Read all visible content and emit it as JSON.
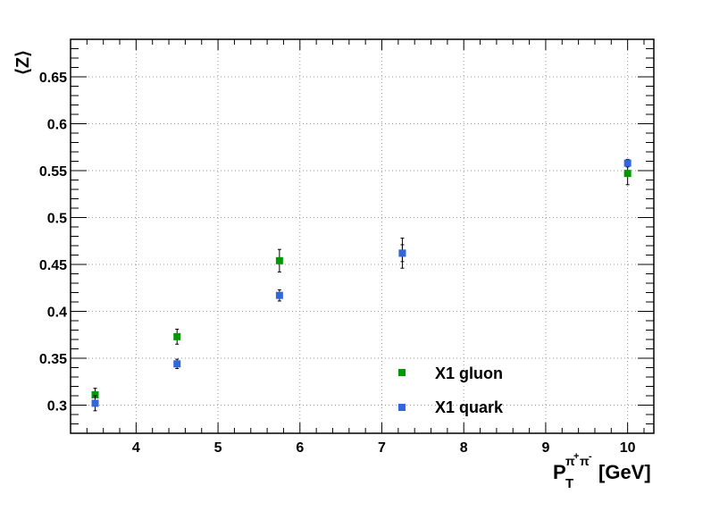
{
  "chart_data": {
    "type": "scatter",
    "title": "",
    "xlabel": {
      "base": "P",
      "subscript": "T",
      "superscript_main": "π",
      "superscript_plus": "+",
      "superscript_pi2": "π",
      "superscript_minus": "-",
      "unit": "[GeV]"
    },
    "ylabel": "⟨Z⟩",
    "xlim": [
      3.2,
      10.32
    ],
    "ylim": [
      0.27,
      0.69
    ],
    "xticks": [
      4,
      5,
      6,
      7,
      8,
      9,
      10
    ],
    "yticks": [
      0.3,
      0.35,
      0.4,
      0.45,
      0.5,
      0.55,
      0.6,
      0.65
    ],
    "grid": true,
    "legend_placement": "bottom-right",
    "series": [
      {
        "name": "X1 gluon",
        "color": "#009900",
        "marker": "square",
        "points": [
          {
            "x": 3.5,
            "y": 0.311,
            "err": 0.007
          },
          {
            "x": 4.5,
            "y": 0.373,
            "err": 0.008
          },
          {
            "x": 5.75,
            "y": 0.454,
            "err": 0.012
          },
          {
            "x": 7.25,
            "y": 0.462,
            "err": 0.016
          },
          {
            "x": 10.0,
            "y": 0.547,
            "err": 0.012
          }
        ]
      },
      {
        "name": "X1 quark",
        "color": "#3366dd",
        "marker": "square",
        "points": [
          {
            "x": 3.5,
            "y": 0.302,
            "err": 0.008
          },
          {
            "x": 4.5,
            "y": 0.344,
            "err": 0.005
          },
          {
            "x": 5.75,
            "y": 0.417,
            "err": 0.006
          },
          {
            "x": 7.25,
            "y": 0.462,
            "err": 0.009
          },
          {
            "x": 10.0,
            "y": 0.558,
            "err": 0.004
          }
        ]
      }
    ]
  }
}
